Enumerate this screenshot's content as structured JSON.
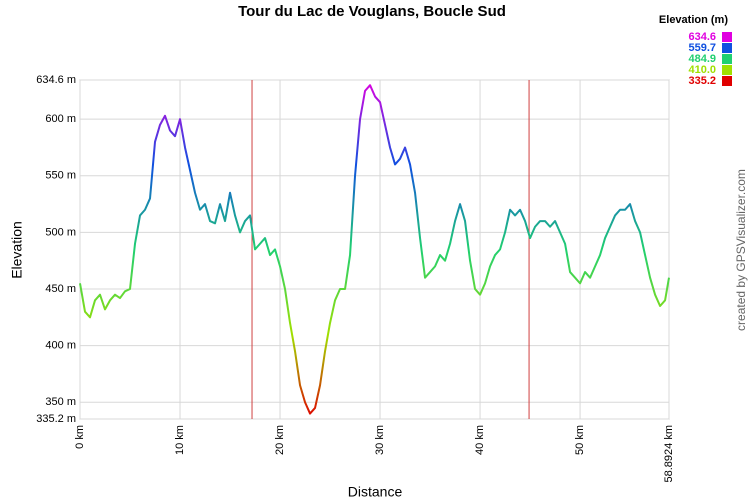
{
  "chart_data": {
    "type": "line",
    "title": "Tour du Lac de Vouglans, Boucle Sud",
    "x_label": "Distance",
    "y_label": "Elevation",
    "credit": "created by GPSVisualizer.com",
    "xlim": [
      0,
      58.8924
    ],
    "ylim": [
      335.2,
      634.6
    ],
    "xticks": [
      {
        "value": 0,
        "label": "0 km"
      },
      {
        "value": 10,
        "label": "10 km"
      },
      {
        "value": 20,
        "label": "20 km"
      },
      {
        "value": 30,
        "label": "30 km"
      },
      {
        "value": 40,
        "label": "40 km"
      },
      {
        "value": 50,
        "label": "50 km"
      },
      {
        "value": 58.8924,
        "label": "58.8924 km"
      }
    ],
    "yticks": [
      {
        "value": 335.2,
        "label": "335.2 m"
      },
      {
        "value": 350,
        "label": "350 m"
      },
      {
        "value": 400,
        "label": "400 m"
      },
      {
        "value": 450,
        "label": "450 m"
      },
      {
        "value": 500,
        "label": "500 m"
      },
      {
        "value": 550,
        "label": "550 m"
      },
      {
        "value": 600,
        "label": "600 m"
      },
      {
        "value": 634.6,
        "label": "634.6 m"
      }
    ],
    "grid": true,
    "vertical_lines": [
      17.2,
      44.9
    ],
    "vertical_line_color": "#d04040",
    "color_scale": {
      "title": "Elevation (m)",
      "values": [
        634.6,
        559.7,
        484.9,
        410,
        335.2
      ],
      "value_labels": [
        "634.6",
        "559.7",
        "484.9",
        "410.0",
        "335.2"
      ],
      "colors": [
        "#e000e0",
        "#1050e0",
        "#20d070",
        "#a0e000",
        "#e00000"
      ]
    },
    "x": [
      0,
      0.5,
      1,
      1.5,
      2,
      2.5,
      3,
      3.5,
      4,
      4.5,
      5,
      5.5,
      6,
      6.5,
      7,
      7.5,
      8,
      8.5,
      9,
      9.5,
      10,
      10.5,
      11,
      11.5,
      12,
      12.5,
      13,
      13.5,
      14,
      14.5,
      15,
      15.5,
      16,
      16.5,
      17,
      17.5,
      18,
      18.5,
      19,
      19.5,
      20,
      20.5,
      21,
      21.5,
      22,
      22.5,
      23,
      23.5,
      24,
      24.5,
      25,
      25.5,
      26,
      26.5,
      27,
      27.5,
      28,
      28.5,
      29,
      29.5,
      30,
      30.5,
      31,
      31.5,
      32,
      32.5,
      33,
      33.5,
      34,
      34.5,
      35,
      35.5,
      36,
      36.5,
      37,
      37.5,
      38,
      38.5,
      39,
      39.5,
      40,
      40.5,
      41,
      41.5,
      42,
      42.5,
      43,
      43.5,
      44,
      44.5,
      45,
      45.5,
      46,
      46.5,
      47,
      47.5,
      48,
      48.5,
      49,
      49.5,
      50,
      50.5,
      51,
      51.5,
      52,
      52.5,
      53,
      53.5,
      54,
      54.5,
      55,
      55.5,
      56,
      56.5,
      57,
      57.5,
      58,
      58.5,
      58.8924
    ],
    "values": [
      455,
      430,
      425,
      440,
      445,
      432,
      440,
      445,
      442,
      448,
      450,
      490,
      515,
      520,
      530,
      580,
      595,
      603,
      590,
      585,
      600,
      575,
      555,
      535,
      520,
      525,
      510,
      508,
      525,
      510,
      535,
      515,
      500,
      510,
      515,
      485,
      490,
      495,
      480,
      485,
      470,
      450,
      420,
      395,
      365,
      350,
      340,
      345,
      365,
      395,
      420,
      440,
      450,
      450,
      480,
      550,
      600,
      625,
      630,
      620,
      615,
      595,
      575,
      560,
      565,
      575,
      560,
      535,
      495,
      460,
      465,
      470,
      480,
      475,
      490,
      510,
      525,
      510,
      475,
      450,
      445,
      455,
      470,
      480,
      485,
      500,
      520,
      515,
      520,
      510,
      495,
      505,
      510,
      510,
      505,
      510,
      500,
      490,
      465,
      460,
      455,
      465,
      460,
      470,
      480,
      495,
      505,
      515,
      520,
      520,
      525,
      510,
      500,
      480,
      460,
      445,
      435,
      440,
      460
    ]
  }
}
